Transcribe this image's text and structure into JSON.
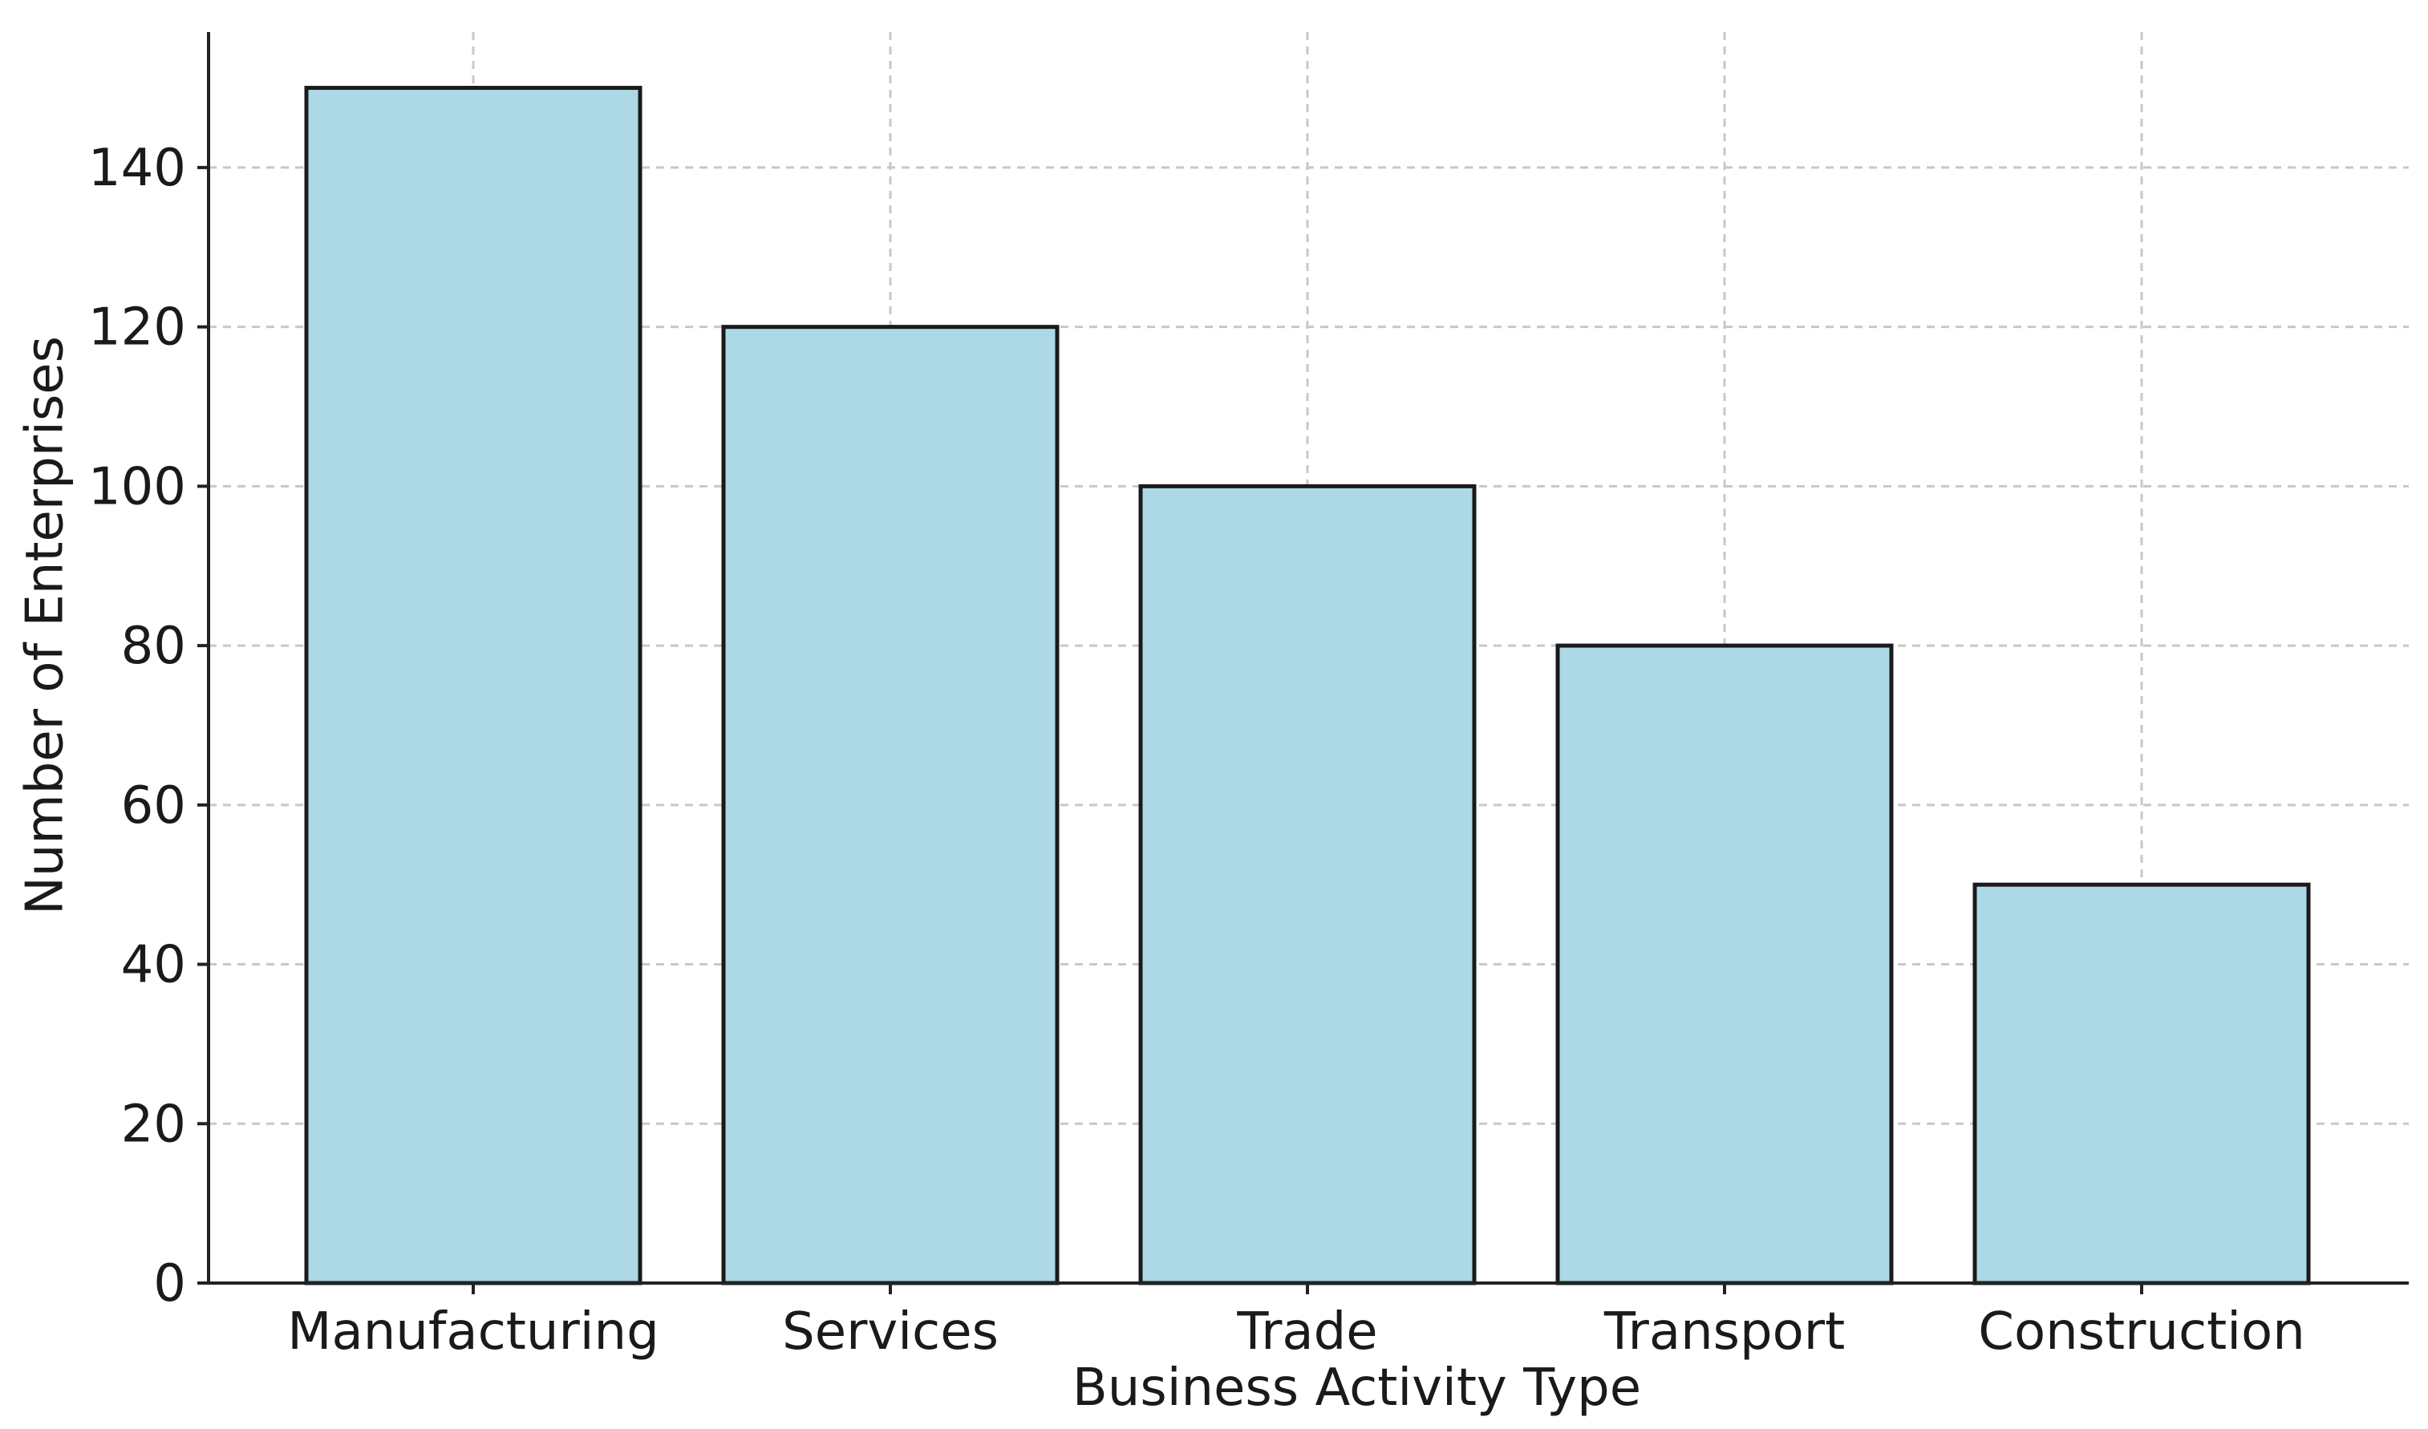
{
  "chart_data": {
    "type": "bar",
    "title": "",
    "xlabel": "Business Activity Type",
    "ylabel": "Number of Enterprises",
    "categories": [
      "Manufacturing",
      "Services",
      "Trade",
      "Transport",
      "Construction"
    ],
    "values": [
      150,
      120,
      100,
      80,
      50
    ],
    "ylim": [
      0,
      157
    ],
    "yticks": [
      0,
      20,
      40,
      60,
      80,
      100,
      120,
      140
    ],
    "grid": true,
    "legend": "none",
    "colors": {
      "bar_fill": "#add8e6",
      "bar_edge": "#1a1a1a",
      "grid": "#c8c8c8",
      "axis": "#222222"
    }
  }
}
